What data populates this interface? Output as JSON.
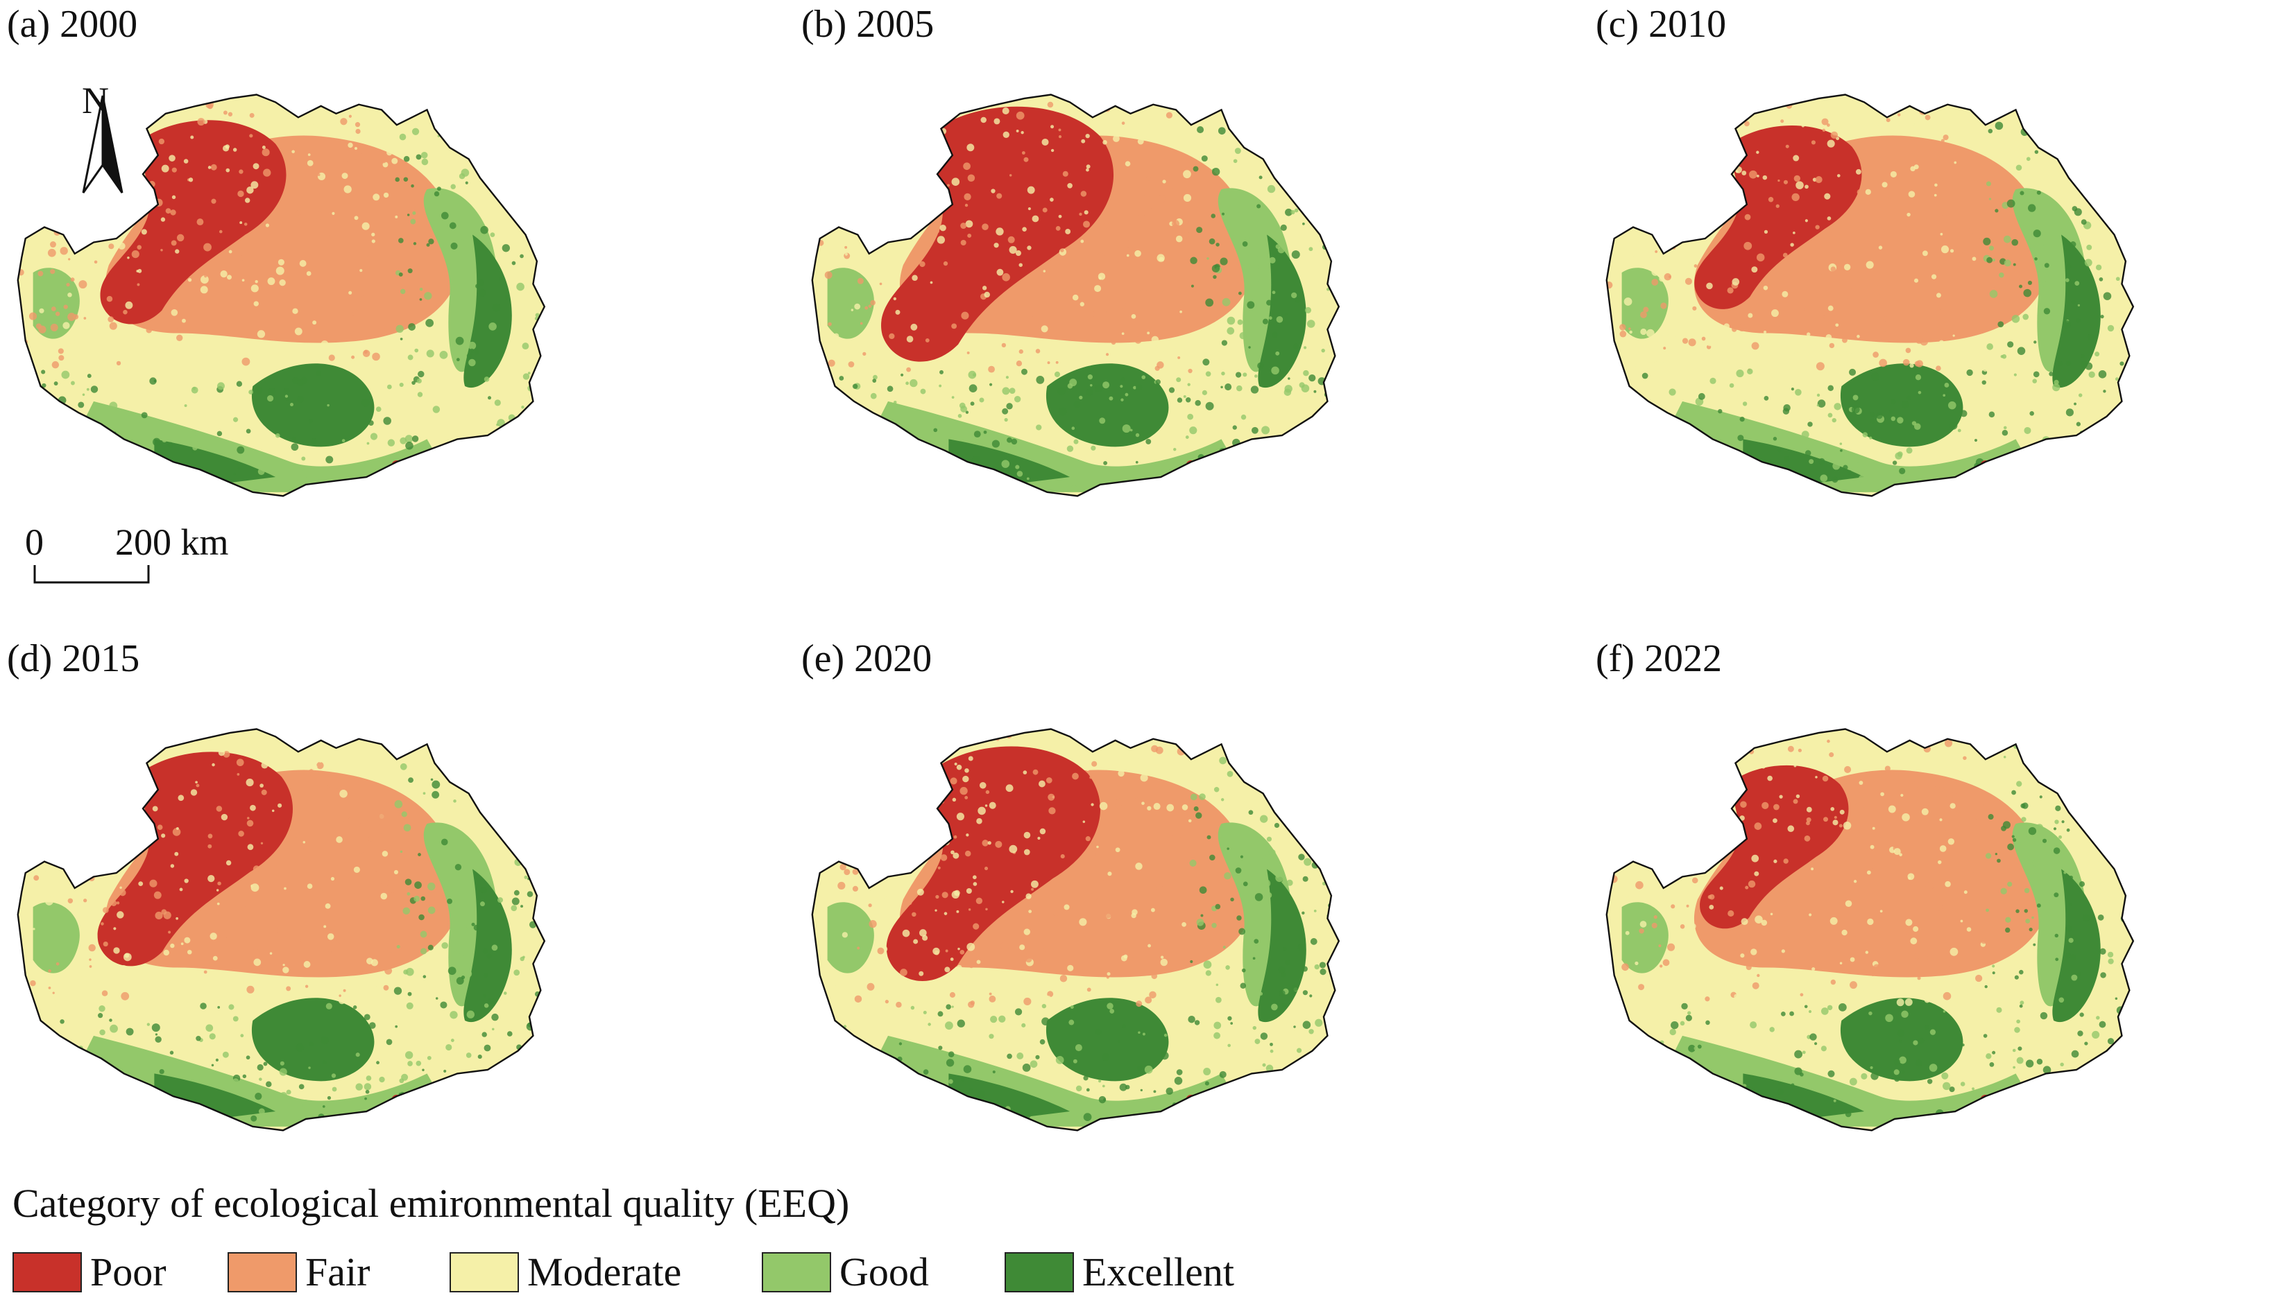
{
  "panels": [
    {
      "label": "(a) 2000"
    },
    {
      "label": "(b) 2005"
    },
    {
      "label": "(c) 2010"
    },
    {
      "label": "(d) 2015"
    },
    {
      "label": "(e) 2020"
    },
    {
      "label": "(f) 2022"
    }
  ],
  "north_arrow": {
    "letter": "N"
  },
  "scale_bar": {
    "start": "0",
    "end": "200 km"
  },
  "legend": {
    "title": "Category of ecological emironmental quality (EEQ)",
    "items": [
      {
        "label": "Poor",
        "color": "#c8312a"
      },
      {
        "label": "Fair",
        "color": "#ef9a6a"
      },
      {
        "label": "Moderate",
        "color": "#f5f0a8"
      },
      {
        "label": "Good",
        "color": "#93c86a"
      },
      {
        "label": "Excellent",
        "color": "#3f8a36"
      }
    ]
  },
  "colors": {
    "poor": "#c8312a",
    "fair": "#ef9a6a",
    "moderate": "#f5f0a8",
    "good": "#93c86a",
    "excellent": "#3f8a36",
    "outline": "#111111"
  }
}
